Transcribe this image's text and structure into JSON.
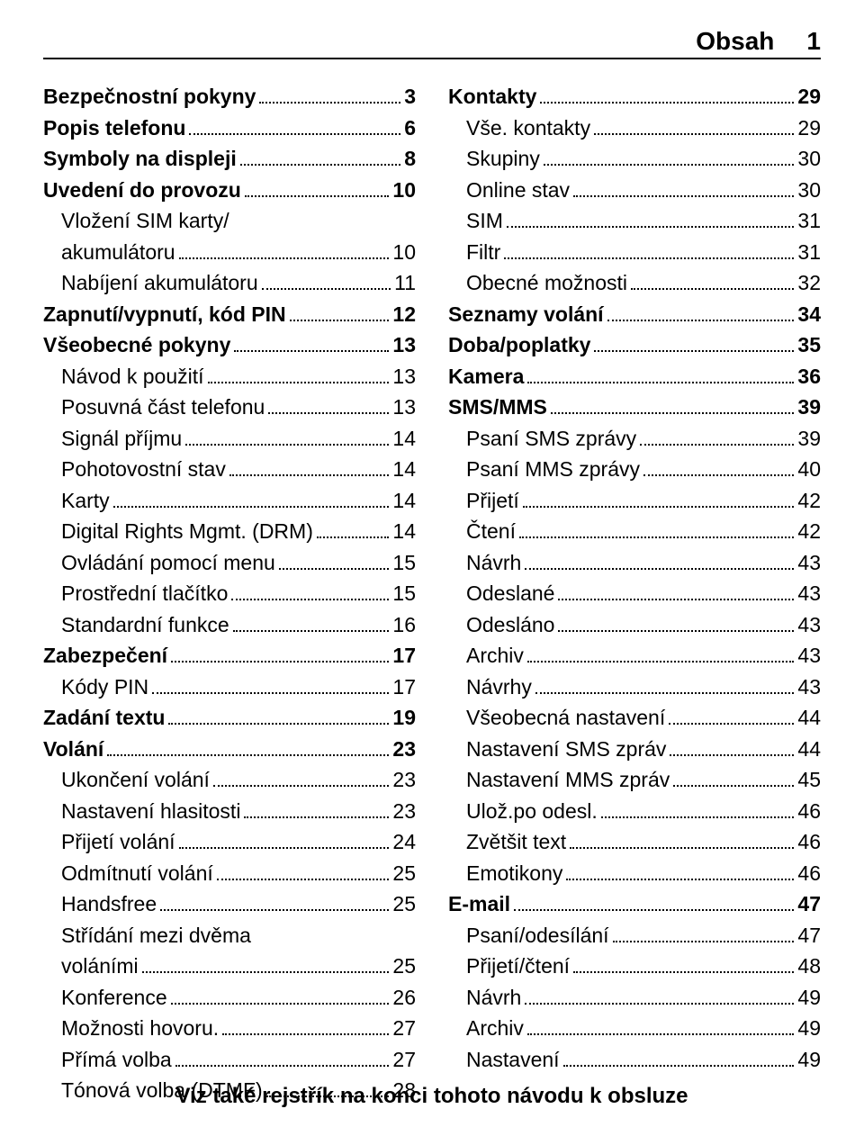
{
  "header": {
    "title": "Obsah",
    "page": "1"
  },
  "footer": "Viz také rejstřík na konci tohoto návodu k obsluze",
  "left": [
    {
      "t": "section",
      "label": "Bezpečnostní pokyny",
      "page": "3"
    },
    {
      "t": "section",
      "label": "Popis telefonu",
      "page": "6"
    },
    {
      "t": "section",
      "label": "Symboly na displeji",
      "page": "8"
    },
    {
      "t": "section",
      "label": "Uvedení do provozu",
      "page": "10"
    },
    {
      "t": "subwrap",
      "label1": "Vložení SIM karty/",
      "label2": "akumulátoru",
      "page": "10"
    },
    {
      "t": "sub",
      "label": "Nabíjení akumulátoru",
      "page": "11"
    },
    {
      "t": "section",
      "label": "Zapnutí/vypnutí, kód PIN",
      "page": "12"
    },
    {
      "t": "section",
      "label": "Všeobecné pokyny",
      "page": "13"
    },
    {
      "t": "sub",
      "label": "Návod k použití",
      "page": "13"
    },
    {
      "t": "sub",
      "label": "Posuvná část telefonu",
      "page": "13"
    },
    {
      "t": "sub",
      "label": "Signál příjmu",
      "page": "14"
    },
    {
      "t": "sub",
      "label": "Pohotovostní stav",
      "page": "14"
    },
    {
      "t": "sub",
      "label": "Karty",
      "page": "14"
    },
    {
      "t": "sub",
      "label": "Digital Rights Mgmt. (DRM)",
      "page": "14"
    },
    {
      "t": "sub",
      "label": "Ovládání pomocí menu",
      "page": "15"
    },
    {
      "t": "sub",
      "label": "Prostřední tlačítko",
      "page": "15"
    },
    {
      "t": "sub",
      "label": "Standardní funkce",
      "page": "16"
    },
    {
      "t": "section",
      "label": "Zabezpečení",
      "page": "17"
    },
    {
      "t": "sub",
      "label": "Kódy PIN",
      "page": "17"
    },
    {
      "t": "section",
      "label": "Zadání textu",
      "page": "19"
    },
    {
      "t": "section",
      "label": "Volání",
      "page": "23"
    },
    {
      "t": "sub",
      "label": "Ukončení volání",
      "page": "23"
    },
    {
      "t": "sub",
      "label": "Nastavení hlasitosti",
      "page": "23"
    },
    {
      "t": "sub",
      "label": "Přijetí volání",
      "page": "24"
    },
    {
      "t": "sub",
      "label": "Odmítnutí volání",
      "page": "25"
    },
    {
      "t": "sub",
      "label": "Handsfree",
      "page": "25"
    },
    {
      "t": "subwrap",
      "label1": "Střídání mezi dvěma",
      "label2": "voláními",
      "page": "25"
    },
    {
      "t": "sub",
      "label": "Konference",
      "page": "26"
    },
    {
      "t": "sub",
      "label": "Možnosti hovoru.",
      "page": "27"
    },
    {
      "t": "sub",
      "label": "Přímá volba",
      "page": "27"
    },
    {
      "t": "sub",
      "label": "Tónová volba (DTMF)",
      "page": "28"
    }
  ],
  "right": [
    {
      "t": "section",
      "label": "Kontakty",
      "page": "29"
    },
    {
      "t": "sub",
      "label": "Vše. kontakty",
      "page": "29"
    },
    {
      "t": "sub",
      "label": "Skupiny",
      "page": "30"
    },
    {
      "t": "sub",
      "label": "Online stav",
      "page": "30"
    },
    {
      "t": "sub",
      "label": "SIM",
      "page": "31"
    },
    {
      "t": "sub",
      "label": "Filtr",
      "page": "31"
    },
    {
      "t": "sub",
      "label": "Obecné možnosti",
      "page": "32"
    },
    {
      "t": "section",
      "label": "Seznamy volání",
      "page": "34"
    },
    {
      "t": "section",
      "label": "Doba/poplatky",
      "page": "35"
    },
    {
      "t": "section",
      "label": "Kamera",
      "page": "36"
    },
    {
      "t": "section",
      "label": "SMS/MMS",
      "page": "39"
    },
    {
      "t": "sub",
      "label": "Psaní SMS zprávy",
      "page": "39"
    },
    {
      "t": "sub",
      "label": "Psaní MMS zprávy",
      "page": "40"
    },
    {
      "t": "sub",
      "label": "Přijetí",
      "page": "42"
    },
    {
      "t": "sub",
      "label": "Čtení",
      "page": "42"
    },
    {
      "t": "sub",
      "label": "Návrh",
      "page": "43"
    },
    {
      "t": "sub",
      "label": "Odeslané",
      "page": "43"
    },
    {
      "t": "sub",
      "label": "Odesláno",
      "page": "43"
    },
    {
      "t": "sub",
      "label": "Archiv",
      "page": "43"
    },
    {
      "t": "sub",
      "label": "Návrhy",
      "page": "43"
    },
    {
      "t": "sub",
      "label": "Všeobecná nastavení",
      "page": "44"
    },
    {
      "t": "sub",
      "label": "Nastavení SMS zpráv",
      "page": "44"
    },
    {
      "t": "sub",
      "label": "Nastavení MMS zpráv",
      "page": "45"
    },
    {
      "t": "sub",
      "label": "Ulož.po odesl.",
      "page": "46"
    },
    {
      "t": "sub",
      "label": "Zvětšit text",
      "page": "46"
    },
    {
      "t": "sub",
      "label": "Emotikony",
      "page": "46"
    },
    {
      "t": "section",
      "label": "E-mail",
      "page": "47"
    },
    {
      "t": "sub",
      "label": "Psaní/odesílání",
      "page": "47"
    },
    {
      "t": "sub",
      "label": "Přijetí/čtení",
      "page": "48"
    },
    {
      "t": "sub",
      "label": "Návrh",
      "page": "49"
    },
    {
      "t": "sub",
      "label": "Archiv",
      "page": "49"
    },
    {
      "t": "sub",
      "label": "Nastavení",
      "page": "49"
    }
  ]
}
